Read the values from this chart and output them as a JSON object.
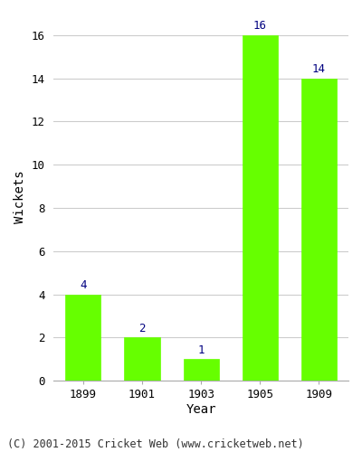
{
  "categories": [
    "1899",
    "1901",
    "1903",
    "1905",
    "1909"
  ],
  "values": [
    4,
    2,
    1,
    16,
    14
  ],
  "bar_color": "#66ff00",
  "bar_edgecolor": "#66ff00",
  "label_color": "#000080",
  "title": "",
  "xlabel": "Year",
  "ylabel": "Wickets",
  "ylim": [
    0,
    17
  ],
  "yticks": [
    0,
    2,
    4,
    6,
    8,
    10,
    12,
    14,
    16
  ],
  "grid_color": "#cccccc",
  "background_color": "#ffffff",
  "footer_text": "(C) 2001-2015 Cricket Web (www.cricketweb.net)",
  "label_fontsize": 9,
  "axis_fontsize": 10,
  "tick_fontsize": 9,
  "footer_fontsize": 8.5
}
